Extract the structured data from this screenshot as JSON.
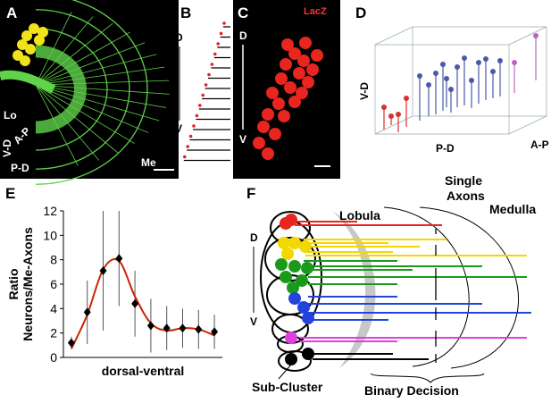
{
  "panels": {
    "a": {
      "label": "A",
      "lo": "Lo",
      "me": "Me",
      "vd": "V-D",
      "ap": "A-P",
      "pd": "P-D"
    },
    "b": {
      "label": "B",
      "d": "D",
      "v": "V"
    },
    "c": {
      "label": "C",
      "stain": "LacZ",
      "d": "D",
      "v": "V"
    },
    "d": {
      "label": "D",
      "vd": "V-D",
      "pd": "P-D",
      "ap": "A-P"
    },
    "e": {
      "label": "E"
    },
    "f": {
      "label": "F",
      "lobula": "Lobula",
      "single_axons": [
        "Single",
        "Axons"
      ],
      "medulla": "Medulla",
      "d": "D",
      "v": "V",
      "sub_cluster": "Sub-Cluster",
      "binary_decision": "Binary Decision"
    }
  },
  "chart_data": {
    "type": "errorbar",
    "categories": [
      null,
      null,
      null,
      null,
      null,
      null,
      null,
      null,
      null,
      null
    ],
    "values": [
      1.2,
      3.7,
      7.1,
      8.1,
      4.4,
      2.6,
      2.4,
      2.4,
      2.3,
      2.1
    ],
    "errors": [
      0.5,
      2.6,
      4.9,
      3.9,
      2.7,
      2.2,
      1.8,
      1.6,
      1.6,
      1.4
    ],
    "fit_values": [
      0.7,
      3.5,
      7.2,
      7.9,
      5.0,
      2.8,
      2.2,
      2.4,
      2.3,
      1.8
    ],
    "color": "#000000",
    "fit_color": "#cc2200",
    "xlabel": "dorsal-ventral",
    "ylabel": [
      "Ratio",
      "Neurons/Me-Axons"
    ],
    "ylim": [
      0,
      12
    ],
    "yticks": [
      0,
      2,
      4,
      6,
      8,
      10,
      12
    ]
  }
}
